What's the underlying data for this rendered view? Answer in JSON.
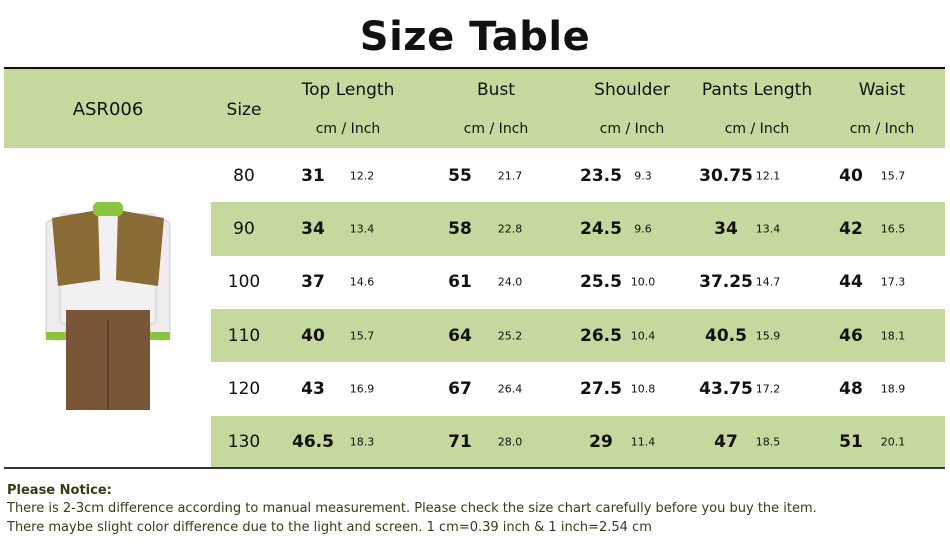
{
  "title": "Size Table",
  "header": {
    "product_code": "ASR006",
    "size_label": "Size",
    "columns": [
      {
        "label": "Top Length",
        "unit": "cm / Inch"
      },
      {
        "label": "Bust",
        "unit": "cm / Inch"
      },
      {
        "label": "Shoulder",
        "unit": "cm / Inch"
      },
      {
        "label": "Pants Length",
        "unit": "cm / Inch"
      },
      {
        "label": "Waist",
        "unit": "cm / Inch"
      }
    ]
  },
  "rows": [
    {
      "size": "80",
      "values": [
        [
          "31",
          "12.2"
        ],
        [
          "55",
          "21.7"
        ],
        [
          "23.5",
          "9.3"
        ],
        [
          "30.75",
          "12.1"
        ],
        [
          "40",
          "15.7"
        ]
      ]
    },
    {
      "size": "90",
      "values": [
        [
          "34",
          "13.4"
        ],
        [
          "58",
          "22.8"
        ],
        [
          "24.5",
          "9.6"
        ],
        [
          "34",
          "13.4"
        ],
        [
          "42",
          "16.5"
        ]
      ]
    },
    {
      "size": "100",
      "values": [
        [
          "37",
          "14.6"
        ],
        [
          "61",
          "24.0"
        ],
        [
          "25.5",
          "10.0"
        ],
        [
          "37.25",
          "14.7"
        ],
        [
          "44",
          "17.3"
        ]
      ]
    },
    {
      "size": "110",
      "values": [
        [
          "40",
          "15.7"
        ],
        [
          "64",
          "25.2"
        ],
        [
          "26.5",
          "10.4"
        ],
        [
          "40.5",
          "15.9"
        ],
        [
          "46",
          "18.1"
        ]
      ]
    },
    {
      "size": "120",
      "values": [
        [
          "43",
          "16.9"
        ],
        [
          "67",
          "26.4"
        ],
        [
          "27.5",
          "10.8"
        ],
        [
          "43.75",
          "17.2"
        ],
        [
          "48",
          "18.9"
        ]
      ]
    },
    {
      "size": "130",
      "values": [
        [
          "46.5",
          "18.3"
        ],
        [
          "71",
          "28.0"
        ],
        [
          "29",
          "11.4"
        ],
        [
          "47",
          "18.5"
        ],
        [
          "51",
          "20.1"
        ]
      ]
    }
  ],
  "notice": {
    "title": "Please Notice:",
    "lines": [
      "There is 2-3cm difference according to manual measurement. Please check the size chart carefully before you buy the item.",
      "There maybe slight color difference due to the light and screen. 1 cm=0.39 inch & 1 inch=2.54 cm"
    ]
  },
  "colors": {
    "header_bg": "#c5d89d",
    "stripe_bg": "#c5d89d",
    "notice_text": "#3b3b18"
  }
}
